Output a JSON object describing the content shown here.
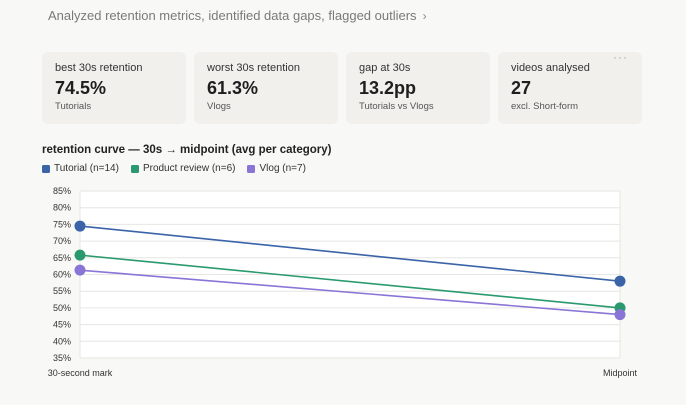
{
  "summary": {
    "text": "Analyzed retention metrics, identified data gaps, flagged outliers",
    "chevron": "›"
  },
  "cards": [
    {
      "label": "best 30s retention",
      "value": "74.5%",
      "sub": "Tutorials"
    },
    {
      "label": "worst 30s retention",
      "value": "61.3%",
      "sub": "Vlogs"
    },
    {
      "label": "gap at 30s",
      "value": "13.2pp",
      "sub": "Tutorials vs Vlogs"
    },
    {
      "label": "videos analysed",
      "value": "27",
      "sub": "excl. Short-form"
    }
  ],
  "more_icon": "more-horizontal-icon",
  "more_glyph": "···",
  "chart_data": {
    "type": "line",
    "title": "retention curve — 30s → midpoint (avg per category)",
    "categories": [
      "30-second mark",
      "Midpoint"
    ],
    "series": [
      {
        "name": "Tutorial (n=14)",
        "color": "#3a63a8",
        "values": [
          74.5,
          58.0
        ]
      },
      {
        "name": "Product review (n=6)",
        "color": "#2a9a6e",
        "values": [
          65.8,
          50.0
        ]
      },
      {
        "name": "Vlog (n=7)",
        "color": "#8a74d6",
        "values": [
          61.3,
          48.0
        ]
      }
    ],
    "ylim": [
      35,
      85
    ],
    "yticks": [
      "35%",
      "40%",
      "45%",
      "50%",
      "55%",
      "60%",
      "65%",
      "70%",
      "75%",
      "80%",
      "85%"
    ],
    "ytick_values": [
      35,
      40,
      45,
      50,
      55,
      60,
      65,
      70,
      75,
      80,
      85
    ],
    "grid": true,
    "legend": "top-left"
  }
}
